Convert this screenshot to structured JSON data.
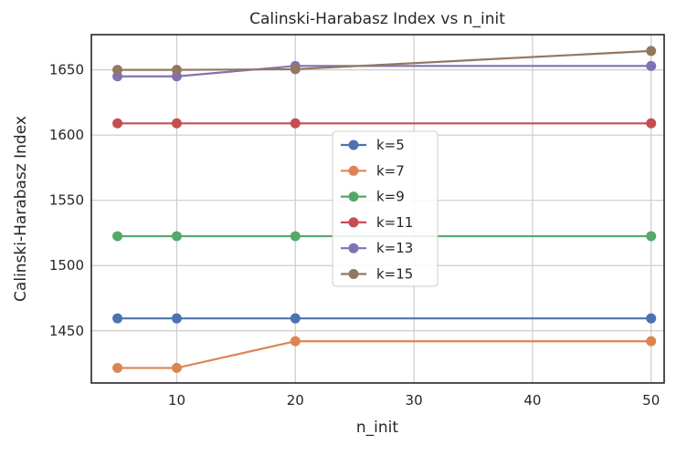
{
  "chart_data": {
    "type": "line",
    "title": "Calinski-Harabasz Index vs n_init",
    "xlabel": "n_init",
    "ylabel": "Calinski-Harabasz Index",
    "x": [
      5,
      10,
      20,
      50
    ],
    "xlim": [
      2.8,
      51.1
    ],
    "ylim": [
      1410,
      1677
    ],
    "xticks": [
      10,
      20,
      30,
      40,
      50
    ],
    "yticks": [
      1450,
      1500,
      1550,
      1600,
      1650
    ],
    "grid": true,
    "legend_placement": "center",
    "series": [
      {
        "name": "k=5",
        "color": "#4c72b0",
        "values": [
          1459.5,
          1459.5,
          1459.5,
          1459.5
        ]
      },
      {
        "name": "k=7",
        "color": "#dd8452",
        "values": [
          1421.5,
          1421.5,
          1442,
          1442
        ]
      },
      {
        "name": "k=9",
        "color": "#55a868",
        "values": [
          1522.5,
          1522.5,
          1522.5,
          1522.5
        ]
      },
      {
        "name": "k=11",
        "color": "#c44e52",
        "values": [
          1609,
          1609,
          1609,
          1609
        ]
      },
      {
        "name": "k=13",
        "color": "#8172b3",
        "values": [
          1645,
          1645,
          1653,
          1653
        ]
      },
      {
        "name": "k=15",
        "color": "#937860",
        "values": [
          1650,
          1650,
          1650.5,
          1664.5
        ]
      }
    ]
  }
}
